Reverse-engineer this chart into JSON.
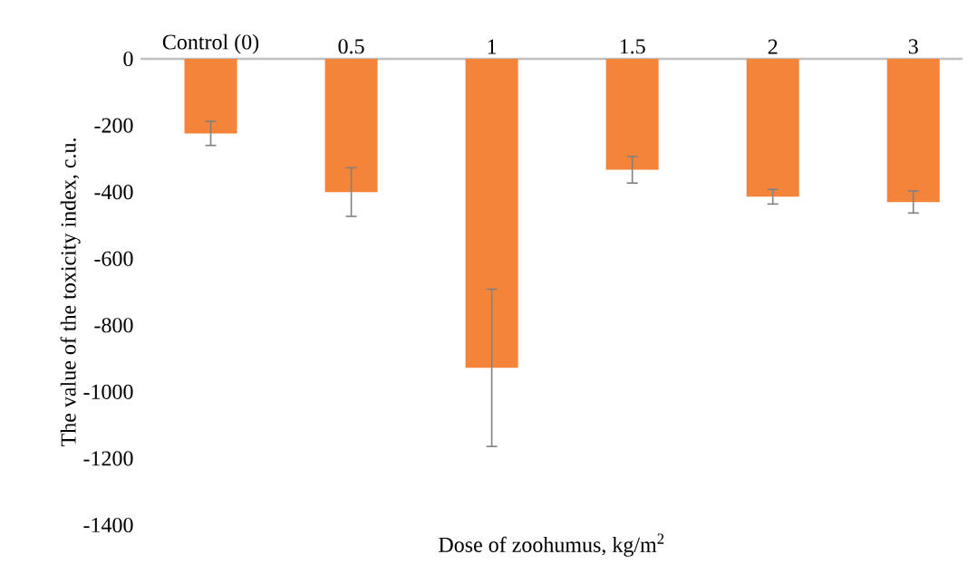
{
  "chart_data": {
    "type": "bar",
    "xlabel": "Dose of zoohumus, kg/m$^{2}$",
    "ylabel": "The value of the toxicity index, c.u.",
    "categories": [
      "Control (0)",
      "0.5",
      "1",
      "1.5",
      "2",
      "3"
    ],
    "values": [
      -224,
      -400,
      -928,
      -333,
      -414,
      -430
    ],
    "errors": [
      36,
      73,
      236,
      40,
      22,
      33
    ],
    "color": "#f4843a",
    "ylim": [
      -1400,
      0
    ],
    "yticks": [
      0,
      -200,
      -400,
      -600,
      -800,
      -1000,
      -1200,
      -1400
    ],
    "grid": false
  }
}
